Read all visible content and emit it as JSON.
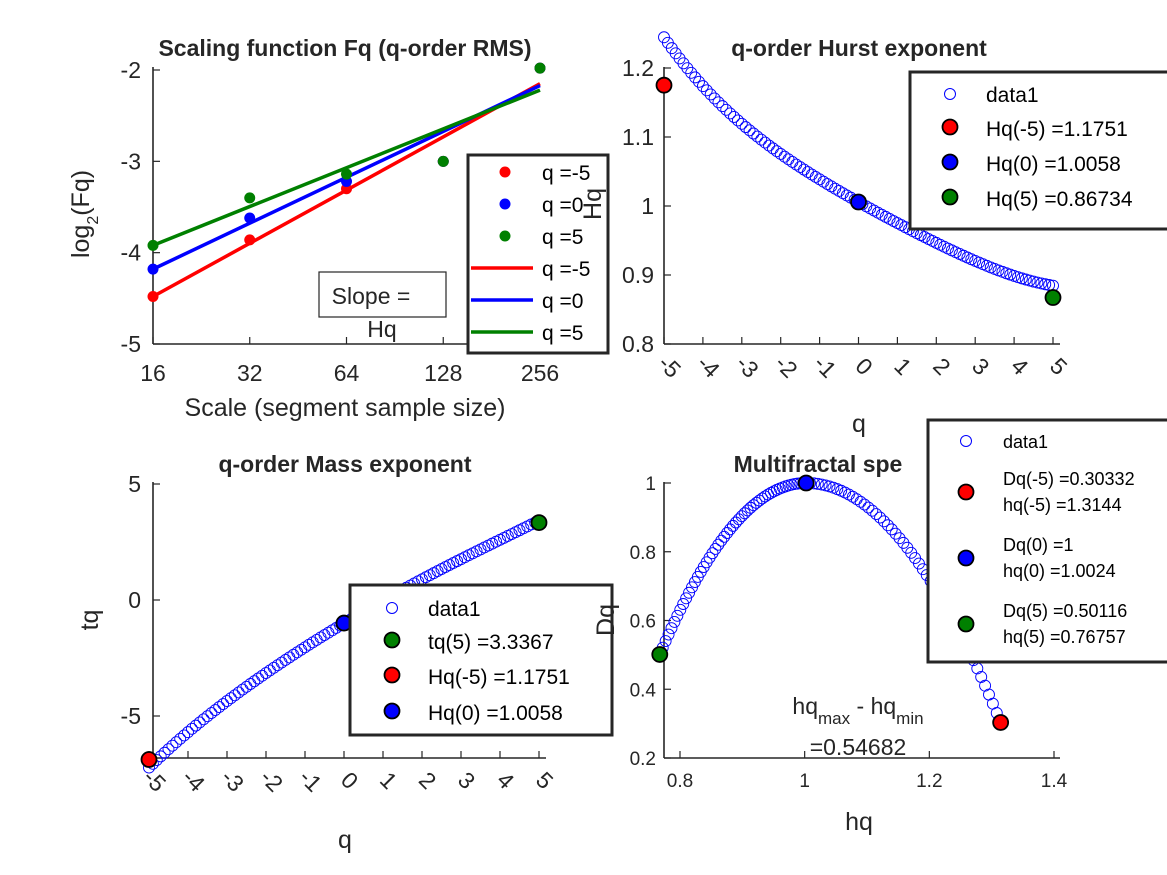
{
  "chart_data": [
    {
      "type": "line",
      "title": "Scaling function Fq (q-order RMS)",
      "xlabel": "Scale (segment sample size)",
      "ylabel": "log2(Fq)",
      "x_scale": "log2",
      "x_ticks": [
        "16",
        "32",
        "64",
        "128",
        "256"
      ],
      "y_ticks": [
        "-5",
        "-4",
        "-3",
        "-2"
      ],
      "xlim": [
        16,
        256
      ],
      "ylim": [
        -5,
        -2
      ],
      "x": [
        16,
        32,
        64,
        128,
        256
      ],
      "points": [
        {
          "name": "q =-5",
          "color": "#ff0000",
          "values": [
            -4.48,
            -3.86,
            -3.3,
            -3.0,
            -1.98
          ]
        },
        {
          "name": "q =0",
          "color": "#0000ff",
          "values": [
            -4.18,
            -3.62,
            -3.22,
            -3.0,
            -1.98
          ]
        },
        {
          "name": "q =5",
          "color": "#008000",
          "values": [
            -3.92,
            -3.4,
            -3.14,
            -3.0,
            -1.98
          ]
        }
      ],
      "fits": [
        {
          "name": "q =-5",
          "color": "#ff0000",
          "y_at": [
            -4.48,
            -2.15
          ]
        },
        {
          "name": "q =0",
          "color": "#0000ff",
          "y_at": [
            -4.18,
            -2.17
          ]
        },
        {
          "name": "q =5",
          "color": "#008000",
          "y_at": [
            -3.92,
            -2.22
          ]
        }
      ],
      "legend": [
        "q =-5",
        "q =0",
        "q =5",
        "q =-5",
        "q =0",
        "q =5"
      ],
      "legend_position": "right",
      "annotation": [
        "Slope =",
        "Hq"
      ],
      "overlap_label": "Hq"
    },
    {
      "type": "scatter",
      "title": "q-order Hurst exponent",
      "xlabel": "q",
      "ylabel": "Hq",
      "xlim": [
        -5,
        5
      ],
      "ylim": [
        0.8,
        1.2
      ],
      "x_ticks": [
        "-5",
        "-4",
        "-3",
        "-2",
        "-1",
        "0",
        "1",
        "2",
        "3",
        "4",
        "5"
      ],
      "y_ticks": [
        "0.8",
        "0.9",
        "1",
        "1.1",
        "1.2"
      ],
      "series": [
        {
          "name": "data1",
          "curve": "hurst",
          "q_range": [
            -5,
            5
          ],
          "count": 101
        }
      ],
      "markers": [
        {
          "label": "Hq(-5) =1.1751",
          "x": -5,
          "y": 1.1751,
          "color": "#ff0000"
        },
        {
          "label": "Hq(0) =1.0058",
          "x": 0,
          "y": 1.0058,
          "color": "#0000ff"
        },
        {
          "label": "Hq(5) =0.86734",
          "x": 5,
          "y": 0.86734,
          "color": "#008000"
        }
      ],
      "legend": [
        "data1",
        "Hq(-5) =1.1751",
        "Hq(0) =1.0058",
        "Hq(5) =0.86734"
      ],
      "legend_position": "top-right"
    },
    {
      "type": "scatter",
      "title": "q-order Mass exponent",
      "xlabel": "q",
      "ylabel": "tq",
      "xlim": [
        -5,
        5
      ],
      "ylim": [
        -6.8,
        5
      ],
      "x_ticks": [
        "-5",
        "-4",
        "-3",
        "-2",
        "-1",
        "0",
        "1",
        "2",
        "3",
        "4",
        "5"
      ],
      "y_ticks": [
        "-5",
        "0",
        "5"
      ],
      "series": [
        {
          "name": "data1",
          "curve": "mass",
          "q_range": [
            -5,
            5
          ],
          "count": 101
        }
      ],
      "markers": [
        {
          "label": "tq(5) =3.3367",
          "x": 5,
          "y": 3.3367,
          "color": "#008000"
        },
        {
          "label": "Hq(-5) =1.1751",
          "x": -5,
          "y": -6.8755,
          "color": "#ff0000"
        },
        {
          "label": "Hq(0) =1.0058",
          "x": 0,
          "y": -0.9942,
          "color": "#0000ff"
        }
      ],
      "legend": [
        "data1",
        "tq(5) =3.3367",
        "Hq(-5) =1.1751",
        "Hq(0) =1.0058"
      ],
      "legend_position": "bottom-right"
    },
    {
      "type": "scatter",
      "title": "Multifractal spe",
      "xlabel": "hq",
      "ylabel": "Dq",
      "xlim": [
        0.77,
        1.4
      ],
      "ylim": [
        0.2,
        1.0
      ],
      "x_ticks": [
        "0.8",
        "1",
        "1.2",
        "1.4"
      ],
      "y_ticks": [
        "0.2",
        "0.4",
        "0.6",
        "0.8",
        "1"
      ],
      "series": [
        {
          "name": "data1",
          "curve": "spectrum",
          "count": 101
        }
      ],
      "markers": [
        {
          "label": "Dq(-5) =0.30332",
          "label2": "hq(-5) =1.3144",
          "x": 1.3144,
          "y": 0.30332,
          "color": "#ff0000"
        },
        {
          "label": "Dq(0) =1",
          "label2": "hq(0) =1.0024",
          "x": 1.0024,
          "y": 1.0,
          "color": "#0000ff"
        },
        {
          "label": "Dq(5) =0.50116",
          "label2": "hq(5) =0.76757",
          "x": 0.76757,
          "y": 0.50116,
          "color": "#008000"
        }
      ],
      "legend": [
        "data1",
        "Dq(-5) =0.30332",
        "hq(-5) =1.3144",
        "Dq(0) =1",
        "hq(0) =1.0024",
        "Dq(5) =0.50116",
        "hq(5) =0.76757"
      ],
      "legend_position": "right",
      "annotation": {
        "line1_main": "hq",
        "line1_sub1": "max",
        "line1_mid": " - hq",
        "line1_sub2": "min",
        "line2": "=0.54682"
      }
    }
  ]
}
